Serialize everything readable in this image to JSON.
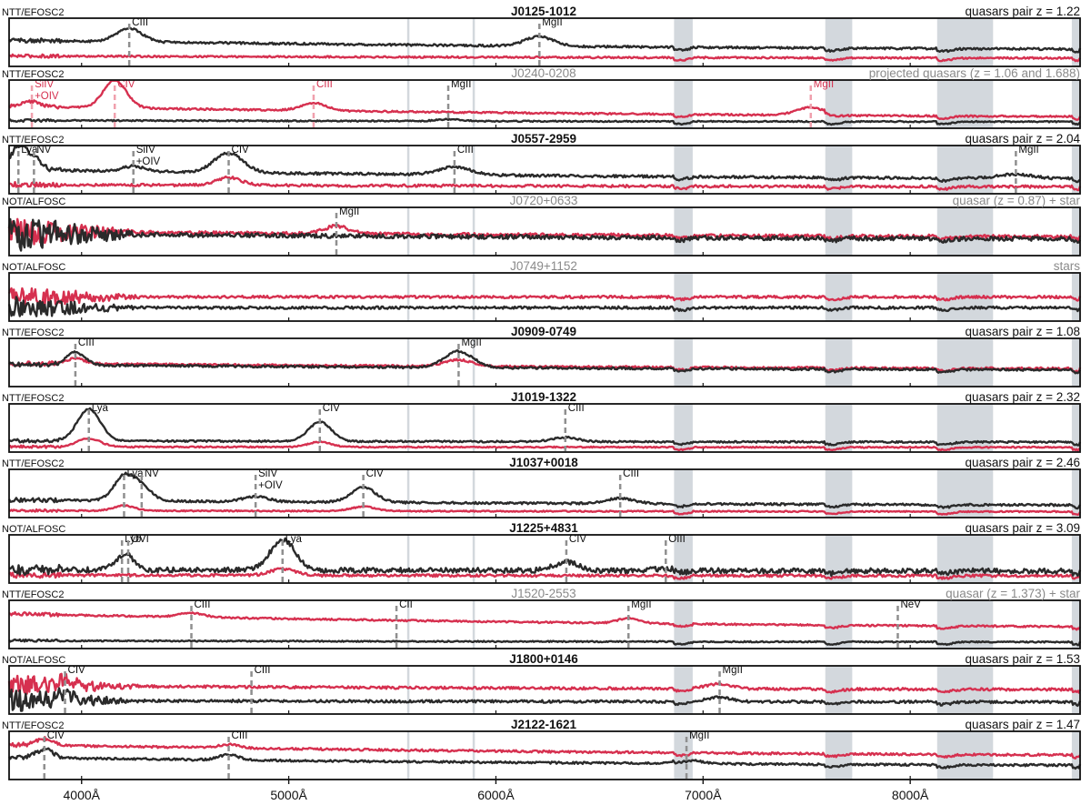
{
  "chart_data": {
    "type": "line",
    "xlim": [
      3650,
      8820
    ],
    "x_unit": "Å",
    "x_ticks": [
      4000,
      5000,
      6000,
      7000,
      8000
    ],
    "x_tick_labels": [
      "4000Å",
      "5000Å",
      "6000Å",
      "7000Å",
      "8000Å"
    ],
    "telluric_bands": [
      [
        6860,
        6950
      ],
      [
        7590,
        7720
      ],
      [
        8130,
        8400
      ],
      [
        8780,
        8820
      ]
    ],
    "sky_lines": [
      5577,
      5893
    ],
    "colors": {
      "component_a": "#2a2a2a",
      "component_b": "#d6304f",
      "band": "#d3d8dd",
      "marker": "#8f8f8f"
    },
    "grid": false,
    "panels": [
      {
        "instrument": "NTT/EFOSC2",
        "title": "J0125-1012",
        "title_style": "bold",
        "right_label": "quasars pair z = 1.22",
        "right_style": "black",
        "line_color": "black",
        "lines": [
          {
            "label": "CIII",
            "wavelength": 4230
          },
          {
            "label": "MgII",
            "wavelength": 6210
          }
        ]
      },
      {
        "instrument": "NTT/EFOSC2",
        "title": "J0240-0208",
        "title_style": "grey",
        "right_label": "projected quasars (z = 1.06 and 1.688)",
        "right_style": "grey",
        "line_color": "mixed",
        "lines": [
          {
            "label": "SiIV +OIV",
            "wavelength": 3760,
            "color": "red"
          },
          {
            "label": "CIV",
            "wavelength": 4160,
            "color": "red"
          },
          {
            "label": "CIII",
            "wavelength": 5120,
            "color": "red"
          },
          {
            "label": "MgII",
            "wavelength": 5770,
            "color": "black"
          },
          {
            "label": "MgII",
            "wavelength": 7520,
            "color": "red"
          }
        ]
      },
      {
        "instrument": "NTT/EFOSC2",
        "title": "J0557-2959",
        "title_style": "bold",
        "right_label": "quasars pair z = 2.04",
        "right_style": "black",
        "line_color": "black",
        "lines": [
          {
            "label": "Lya",
            "wavelength": 3695
          },
          {
            "label": "NV",
            "wavelength": 3770
          },
          {
            "label": "SiIV +OIV",
            "wavelength": 4250
          },
          {
            "label": "CIV",
            "wavelength": 4710
          },
          {
            "label": "CIII",
            "wavelength": 5800
          },
          {
            "label": "MgII",
            "wavelength": 8510
          }
        ]
      },
      {
        "instrument": "NOT/ALFOSC",
        "title": "J0720+0633",
        "title_style": "grey",
        "right_label": "quasar (z = 0.87) + star",
        "right_style": "grey",
        "line_color": "black",
        "lines": [
          {
            "label": "MgII",
            "wavelength": 5230
          }
        ]
      },
      {
        "instrument": "NOT/ALFOSC",
        "title": "J0749+1152",
        "title_style": "grey",
        "right_label": "stars",
        "right_style": "grey",
        "line_color": "black",
        "lines": []
      },
      {
        "instrument": "NTT/EFOSC2",
        "title": "J0909-0749",
        "title_style": "bold",
        "right_label": "quasars pair z = 1.08",
        "right_style": "black",
        "line_color": "black",
        "lines": [
          {
            "label": "CIII",
            "wavelength": 3970
          },
          {
            "label": "MgII",
            "wavelength": 5820
          }
        ]
      },
      {
        "instrument": "NTT/EFOSC2",
        "title": "J1019-1322",
        "title_style": "bold",
        "right_label": "quasars pair z = 2.32",
        "right_style": "black",
        "line_color": "black",
        "lines": [
          {
            "label": "Lya",
            "wavelength": 4035
          },
          {
            "label": "CIV",
            "wavelength": 5150
          },
          {
            "label": "CIII",
            "wavelength": 6335
          }
        ]
      },
      {
        "instrument": "NTT/EFOSC2",
        "title": "J1037+0018",
        "title_style": "bold",
        "right_label": "quasars pair z = 2.46",
        "right_style": "black",
        "line_color": "black",
        "lines": [
          {
            "label": "Lya",
            "wavelength": 4205
          },
          {
            "label": "NV",
            "wavelength": 4290
          },
          {
            "label": "SiIV +OIV",
            "wavelength": 4840
          },
          {
            "label": "CIV",
            "wavelength": 5360
          },
          {
            "label": "CIII",
            "wavelength": 6600
          }
        ]
      },
      {
        "instrument": "NOT/ALFOSC",
        "title": "J1225+4831",
        "title_style": "bold",
        "right_label": "quasars pair z = 3.09",
        "right_style": "black",
        "line_color": "black",
        "lines": [
          {
            "label": "Lyb",
            "wavelength": 4195
          },
          {
            "label": "OVI",
            "wavelength": 4225
          },
          {
            "label": "Lya",
            "wavelength": 4970
          },
          {
            "label": "CIV",
            "wavelength": 6340
          },
          {
            "label": "OIII",
            "wavelength": 6820
          }
        ]
      },
      {
        "instrument": "NTT/EFOSC2",
        "title": "J1520-2553",
        "title_style": "grey",
        "right_label": "quasar (z = 1.373) + star",
        "right_style": "grey",
        "line_color": "black",
        "lines": [
          {
            "label": "CIII",
            "wavelength": 4530
          },
          {
            "label": "CII",
            "wavelength": 5520
          },
          {
            "label": "MgII",
            "wavelength": 6640
          },
          {
            "label": "NeV",
            "wavelength": 7940
          }
        ]
      },
      {
        "instrument": "NOT/ALFOSC",
        "title": "J1800+0146",
        "title_style": "bold",
        "right_label": "quasars pair z = 1.53",
        "right_style": "black",
        "line_color": "black",
        "lines": [
          {
            "label": "CIV",
            "wavelength": 3920
          },
          {
            "label": "CIII",
            "wavelength": 4820
          },
          {
            "label": "MgII",
            "wavelength": 7080
          }
        ]
      },
      {
        "instrument": "NTT/EFOSC2",
        "title": "J2122-1621",
        "title_style": "bold",
        "right_label": "quasars pair z = 1.47",
        "right_style": "black",
        "line_color": "black",
        "lines": [
          {
            "label": "CIV",
            "wavelength": 3820
          },
          {
            "label": "CIII",
            "wavelength": 4710
          },
          {
            "label": "MgII",
            "wavelength": 6920
          }
        ]
      }
    ]
  }
}
